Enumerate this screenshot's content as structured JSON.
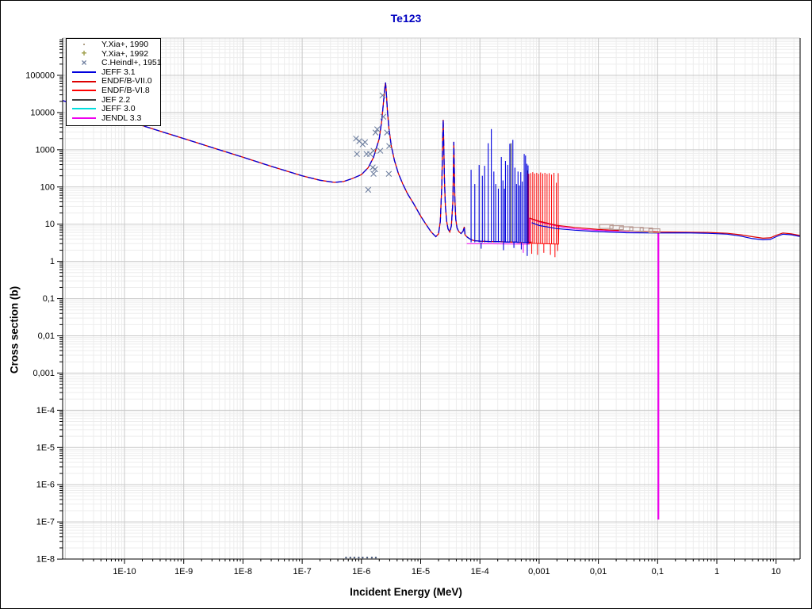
{
  "window": {
    "app": "nuclear-data-plot"
  },
  "legend": {
    "items": [
      {
        "label": "Y.Xia+, 1990",
        "type": "dot",
        "color": "#b0a188"
      },
      {
        "label": "Y.Xia+, 1992",
        "type": "plus",
        "color": "#9c9c46"
      },
      {
        "label": "C.Heindl+, 1951",
        "type": "x",
        "color": "#7080a0"
      },
      {
        "label": "JEFF 3.1",
        "type": "line",
        "color": "#0000dd"
      },
      {
        "label": "ENDF/B-VII.0",
        "type": "line",
        "color": "#dd0000"
      },
      {
        "label": "ENDF/B-VI.8",
        "type": "line",
        "color": "#ff0000"
      },
      {
        "label": "JEF 2.2",
        "type": "line",
        "color": "#404040"
      },
      {
        "label": "JEFF 3.0",
        "type": "line",
        "color": "#00dddd"
      },
      {
        "label": "JENDL 3.3",
        "type": "line",
        "color": "#ee00ee"
      }
    ]
  },
  "chart_data": {
    "type": "line",
    "title": "Te123",
    "xlabel": "Incident Energy (MeV)",
    "ylabel": "Cross section (b)",
    "x_scale": "log",
    "y_scale": "log",
    "x_range": [
      9e-12,
      25
    ],
    "y_range": [
      1e-08,
      1000000.0
    ],
    "grid": {
      "major_color": "#c9c9c9",
      "minor_color": "#ededed"
    },
    "x_ticks": [
      {
        "label": "1E-10",
        "v": 1e-10
      },
      {
        "label": "1E-9",
        "v": 1e-09
      },
      {
        "label": "1E-8",
        "v": 1e-08
      },
      {
        "label": "1E-7",
        "v": 1e-07
      },
      {
        "label": "1E-6",
        "v": 1e-06
      },
      {
        "label": "1E-5",
        "v": 1e-05
      },
      {
        "label": "1E-4",
        "v": 0.0001
      },
      {
        "label": "0,001",
        "v": 0.001
      },
      {
        "label": "0,01",
        "v": 0.01
      },
      {
        "label": "0,1",
        "v": 0.1
      },
      {
        "label": "1",
        "v": 1
      },
      {
        "label": "10",
        "v": 10
      }
    ],
    "y_ticks": [
      {
        "label": "100000",
        "v": 100000.0
      },
      {
        "label": "10000",
        "v": 10000.0
      },
      {
        "label": "1000",
        "v": 1000.0
      },
      {
        "label": "100",
        "v": 100
      },
      {
        "label": "10",
        "v": 10
      },
      {
        "label": "1",
        "v": 1
      },
      {
        "label": "0,1",
        "v": 0.1
      },
      {
        "label": "0,01",
        "v": 0.01
      },
      {
        "label": "0,001",
        "v": 0.001
      },
      {
        "label": "1E-4",
        "v": 0.0001
      },
      {
        "label": "1E-5",
        "v": 1e-05
      },
      {
        "label": "1E-6",
        "v": 1e-06
      },
      {
        "label": "1E-7",
        "v": 1e-07
      },
      {
        "label": "1E-8",
        "v": 1e-08
      }
    ],
    "series": {
      "resonance_curve_all_libs": {
        "color_under": "#dd0000",
        "color_over": "#0000dd",
        "points": [
          [
            9e-12,
            21000
          ],
          [
            3e-11,
            11500
          ],
          [
            1e-10,
            6300
          ],
          [
            3e-10,
            3640
          ],
          [
            1e-09,
            2000
          ],
          [
            3e-09,
            1150
          ],
          [
            1e-08,
            630
          ],
          [
            3e-08,
            360
          ],
          [
            1e-07,
            200
          ],
          [
            2e-07,
            152
          ],
          [
            3.5e-07,
            133
          ],
          [
            5e-07,
            140
          ],
          [
            7e-07,
            168
          ],
          [
            1e-06,
            215
          ],
          [
            1.3e-06,
            330
          ],
          [
            1.6e-06,
            620
          ],
          [
            2e-06,
            2000
          ],
          [
            2.2e-06,
            6000
          ],
          [
            2.35e-06,
            18000
          ],
          [
            2.5e-06,
            50000
          ],
          [
            2.55e-06,
            64000
          ],
          [
            2.62e-06,
            40000
          ],
          [
            2.75e-06,
            11000
          ],
          [
            2.9e-06,
            4000
          ],
          [
            3.2e-06,
            1250
          ],
          [
            3.6e-06,
            520
          ],
          [
            4.2e-06,
            230
          ],
          [
            5e-06,
            120
          ],
          [
            6e-06,
            66
          ],
          [
            7.5e-06,
            37
          ],
          [
            1e-05,
            16.5
          ],
          [
            1.2e-05,
            10.5
          ],
          [
            1.5e-05,
            6.2
          ],
          [
            1.8e-05,
            4.6
          ],
          [
            2e-05,
            5.5
          ],
          [
            2.15e-05,
            12
          ],
          [
            2.28e-05,
            120
          ],
          [
            2.36e-05,
            2500
          ],
          [
            2.4e-05,
            6400
          ],
          [
            2.44e-05,
            2500
          ],
          [
            2.52e-05,
            150
          ],
          [
            2.62e-05,
            30
          ],
          [
            2.75e-05,
            12
          ],
          [
            2.9e-05,
            7.5
          ],
          [
            3.1e-05,
            6.2
          ],
          [
            3.3e-05,
            9
          ],
          [
            3.5e-05,
            40
          ],
          [
            3.58e-05,
            400
          ],
          [
            3.63e-05,
            1630
          ],
          [
            3.68e-05,
            400
          ],
          [
            3.78e-05,
            50
          ],
          [
            3.9e-05,
            14
          ],
          [
            4.1e-05,
            8
          ],
          [
            4.4e-05,
            6.3
          ],
          [
            4.8e-05,
            5.6
          ],
          [
            5.2e-05,
            6.5
          ],
          [
            5.45e-05,
            8.5
          ],
          [
            5.6e-05,
            5.2
          ],
          [
            6e-05,
            4.6
          ],
          [
            6.5e-05,
            4.2
          ],
          [
            7.2e-05,
            3.8
          ],
          [
            8e-05,
            3.6
          ],
          [
            0.0001,
            3.5
          ],
          [
            0.00015,
            3.4
          ],
          [
            0.0002,
            3.4
          ],
          [
            0.0003,
            3.3
          ],
          [
            0.0004,
            3.3
          ],
          [
            0.0005,
            3.2
          ],
          [
            0.0006,
            3.2
          ],
          [
            0.00075,
            3.3
          ]
        ]
      },
      "jeff31_spikes": {
        "color": "#0000dd",
        "baseline": 3.25,
        "spikes": [
          [
            7.1e-05,
            290
          ],
          [
            8.2e-05,
            120
          ],
          [
            9.7e-05,
            390
          ],
          [
            0.00011,
            200
          ],
          [
            0.00012,
            370
          ],
          [
            0.000138,
            1500
          ],
          [
            0.000156,
            3600
          ],
          [
            0.000172,
            260
          ],
          [
            0.000185,
            120
          ],
          [
            0.000205,
            90
          ],
          [
            0.00023,
            640
          ],
          [
            0.000245,
            150
          ],
          [
            0.00026,
            90
          ],
          [
            0.00027,
            500
          ],
          [
            0.000295,
            390
          ],
          [
            0.00032,
            1450
          ],
          [
            0.00036,
            1850
          ],
          [
            0.00039,
            330
          ],
          [
            0.000415,
            120
          ],
          [
            0.00044,
            260
          ],
          [
            0.000465,
            110
          ],
          [
            0.00049,
            250
          ],
          [
            0.00052,
            140
          ],
          [
            0.00056,
            770
          ],
          [
            0.00059,
            700
          ],
          [
            0.00062,
            420
          ],
          [
            0.00065,
            380
          ]
        ],
        "dips": [
          [
            0.000105,
            2.2
          ],
          [
            0.00025,
            2.0
          ],
          [
            0.000375,
            2.3
          ],
          [
            0.0005,
            2.1
          ],
          [
            0.00063,
            1.4
          ]
        ]
      },
      "endf_spikes": {
        "color": "#ff0000",
        "baseline": 3.0,
        "baseline_points": [
          [
            0.00062,
            3.1
          ],
          [
            0.00212,
            2.9
          ],
          [
            0.00215,
            8.9
          ]
        ],
        "spikes": [
          [
            0.00063,
            240
          ],
          [
            0.00067,
            225
          ],
          [
            0.00072,
            235
          ],
          [
            0.00078,
            250
          ],
          [
            0.00084,
            230
          ],
          [
            0.00091,
            240
          ],
          [
            0.00098,
            225
          ],
          [
            0.00106,
            245
          ],
          [
            0.00115,
            230
          ],
          [
            0.00125,
            240
          ],
          [
            0.00136,
            225
          ],
          [
            0.00148,
            235
          ],
          [
            0.00162,
            215
          ],
          [
            0.00178,
            240
          ],
          [
            0.00195,
            130
          ],
          [
            0.0021,
            235
          ]
        ],
        "dips": [
          [
            0.00075,
            1.6
          ],
          [
            0.00094,
            1.5
          ],
          [
            0.0012,
            1.7
          ],
          [
            0.00155,
            1.5
          ],
          [
            0.00185,
            1.3
          ],
          [
            0.00205,
            1.9
          ]
        ]
      },
      "jef22_spikes": {
        "color": "#404040",
        "baseline": 3.2,
        "spikes": [
          [
            0.000335,
            1500
          ],
          [
            0.000635,
            280
          ]
        ]
      },
      "jeff31_highE": {
        "color": "#0000dd",
        "points": [
          [
            0.00075,
            11
          ],
          [
            0.001,
            9.2
          ],
          [
            0.002,
            7.6
          ],
          [
            0.004,
            6.9
          ],
          [
            0.01,
            6.3
          ],
          [
            0.03,
            5.9
          ],
          [
            0.1,
            5.8
          ],
          [
            0.3,
            5.85
          ],
          [
            0.7,
            5.7
          ],
          [
            1.5,
            5.4
          ],
          [
            2.5,
            4.8
          ],
          [
            4,
            4.1
          ],
          [
            6,
            3.8
          ],
          [
            8,
            3.9
          ],
          [
            10,
            4.6
          ],
          [
            13,
            5.4
          ],
          [
            18,
            5.2
          ],
          [
            25,
            4.7
          ]
        ]
      },
      "endf_highE": {
        "color": "#dd0000",
        "points": [
          [
            0.00069,
            14.5
          ],
          [
            0.001,
            12
          ],
          [
            0.002,
            9.3
          ],
          [
            0.004,
            8.2
          ],
          [
            0.01,
            7.2
          ],
          [
            0.03,
            6.6
          ],
          [
            0.1,
            6.2
          ],
          [
            0.3,
            6.1
          ],
          [
            0.7,
            6.0
          ],
          [
            1.5,
            5.7
          ],
          [
            2.5,
            5.2
          ],
          [
            4,
            4.6
          ],
          [
            6,
            4.2
          ],
          [
            8,
            4.3
          ],
          [
            10,
            5.0
          ],
          [
            13,
            5.8
          ],
          [
            18,
            5.5
          ],
          [
            25,
            5.0
          ]
        ]
      },
      "jendl33": {
        "color": "#ee00ee",
        "baseline_points": [
          [
            6e-05,
            3.0
          ],
          [
            0.00069,
            2.9
          ]
        ],
        "dip": [
          0.00054,
          2.9,
          1.7
        ],
        "points": [
          [
            0.00069,
            3.1
          ],
          [
            0.00069,
            14.5
          ],
          [
            0.001,
            11.5
          ],
          [
            0.002,
            8.8
          ],
          [
            0.004,
            7.5
          ],
          [
            0.01,
            6.8
          ],
          [
            0.03,
            6.4
          ],
          [
            0.103,
            6.2
          ]
        ],
        "drop": [
          0.103,
          6.2,
          1.15e-07
        ]
      }
    },
    "experimental": {
      "heindl_1951": {
        "marker": "x",
        "color": "#7080a0",
        "points": [
          [
            8.1e-07,
            2000
          ],
          [
            9.2e-07,
            1700
          ],
          [
            1.05e-06,
            1400
          ],
          [
            1.15e-06,
            1600
          ],
          [
            8.4e-07,
            770
          ],
          [
            1.22e-06,
            770
          ],
          [
            1.4e-06,
            770
          ],
          [
            1.6e-06,
            940
          ],
          [
            1.73e-06,
            2900
          ],
          [
            1.85e-06,
            3550
          ],
          [
            2.08e-06,
            940
          ],
          [
            2.27e-06,
            29000
          ],
          [
            2.34e-06,
            7700
          ],
          [
            2.71e-06,
            2900
          ],
          [
            2.95e-06,
            1260
          ],
          [
            1.55e-06,
            335
          ],
          [
            1.7e-06,
            300
          ],
          [
            1.6e-06,
            225
          ],
          [
            2.9e-06,
            225
          ],
          [
            1.3e-06,
            84
          ]
        ]
      },
      "xia_1990_dots": {
        "marker": "dot",
        "color": "#4a5a7a",
        "points": [
          [
            5.5e-07,
            1.1e-08
          ],
          [
            6.5e-07,
            1.1e-08
          ],
          [
            7.6e-07,
            1.1e-08
          ],
          [
            9e-07,
            1.1e-08
          ],
          [
            1.05e-06,
            1.1e-08
          ],
          [
            1.25e-06,
            1.1e-08
          ],
          [
            1.5e-06,
            1.1e-08
          ],
          [
            1.75e-06,
            1.1e-08
          ]
        ]
      },
      "xia_1992_boxes": {
        "color": "#b5968e",
        "boxes": [
          [
            0.0105,
            0.0177,
            7.7,
            9.8
          ],
          [
            0.0156,
            0.0265,
            7.2,
            9.1
          ],
          [
            0.0227,
            0.0382,
            6.7,
            8.5
          ],
          [
            0.0338,
            0.0572,
            6.5,
            8.2
          ],
          [
            0.0506,
            0.0822,
            6.2,
            7.9
          ],
          [
            0.0714,
            0.109,
            5.9,
            7.5
          ]
        ]
      }
    }
  }
}
